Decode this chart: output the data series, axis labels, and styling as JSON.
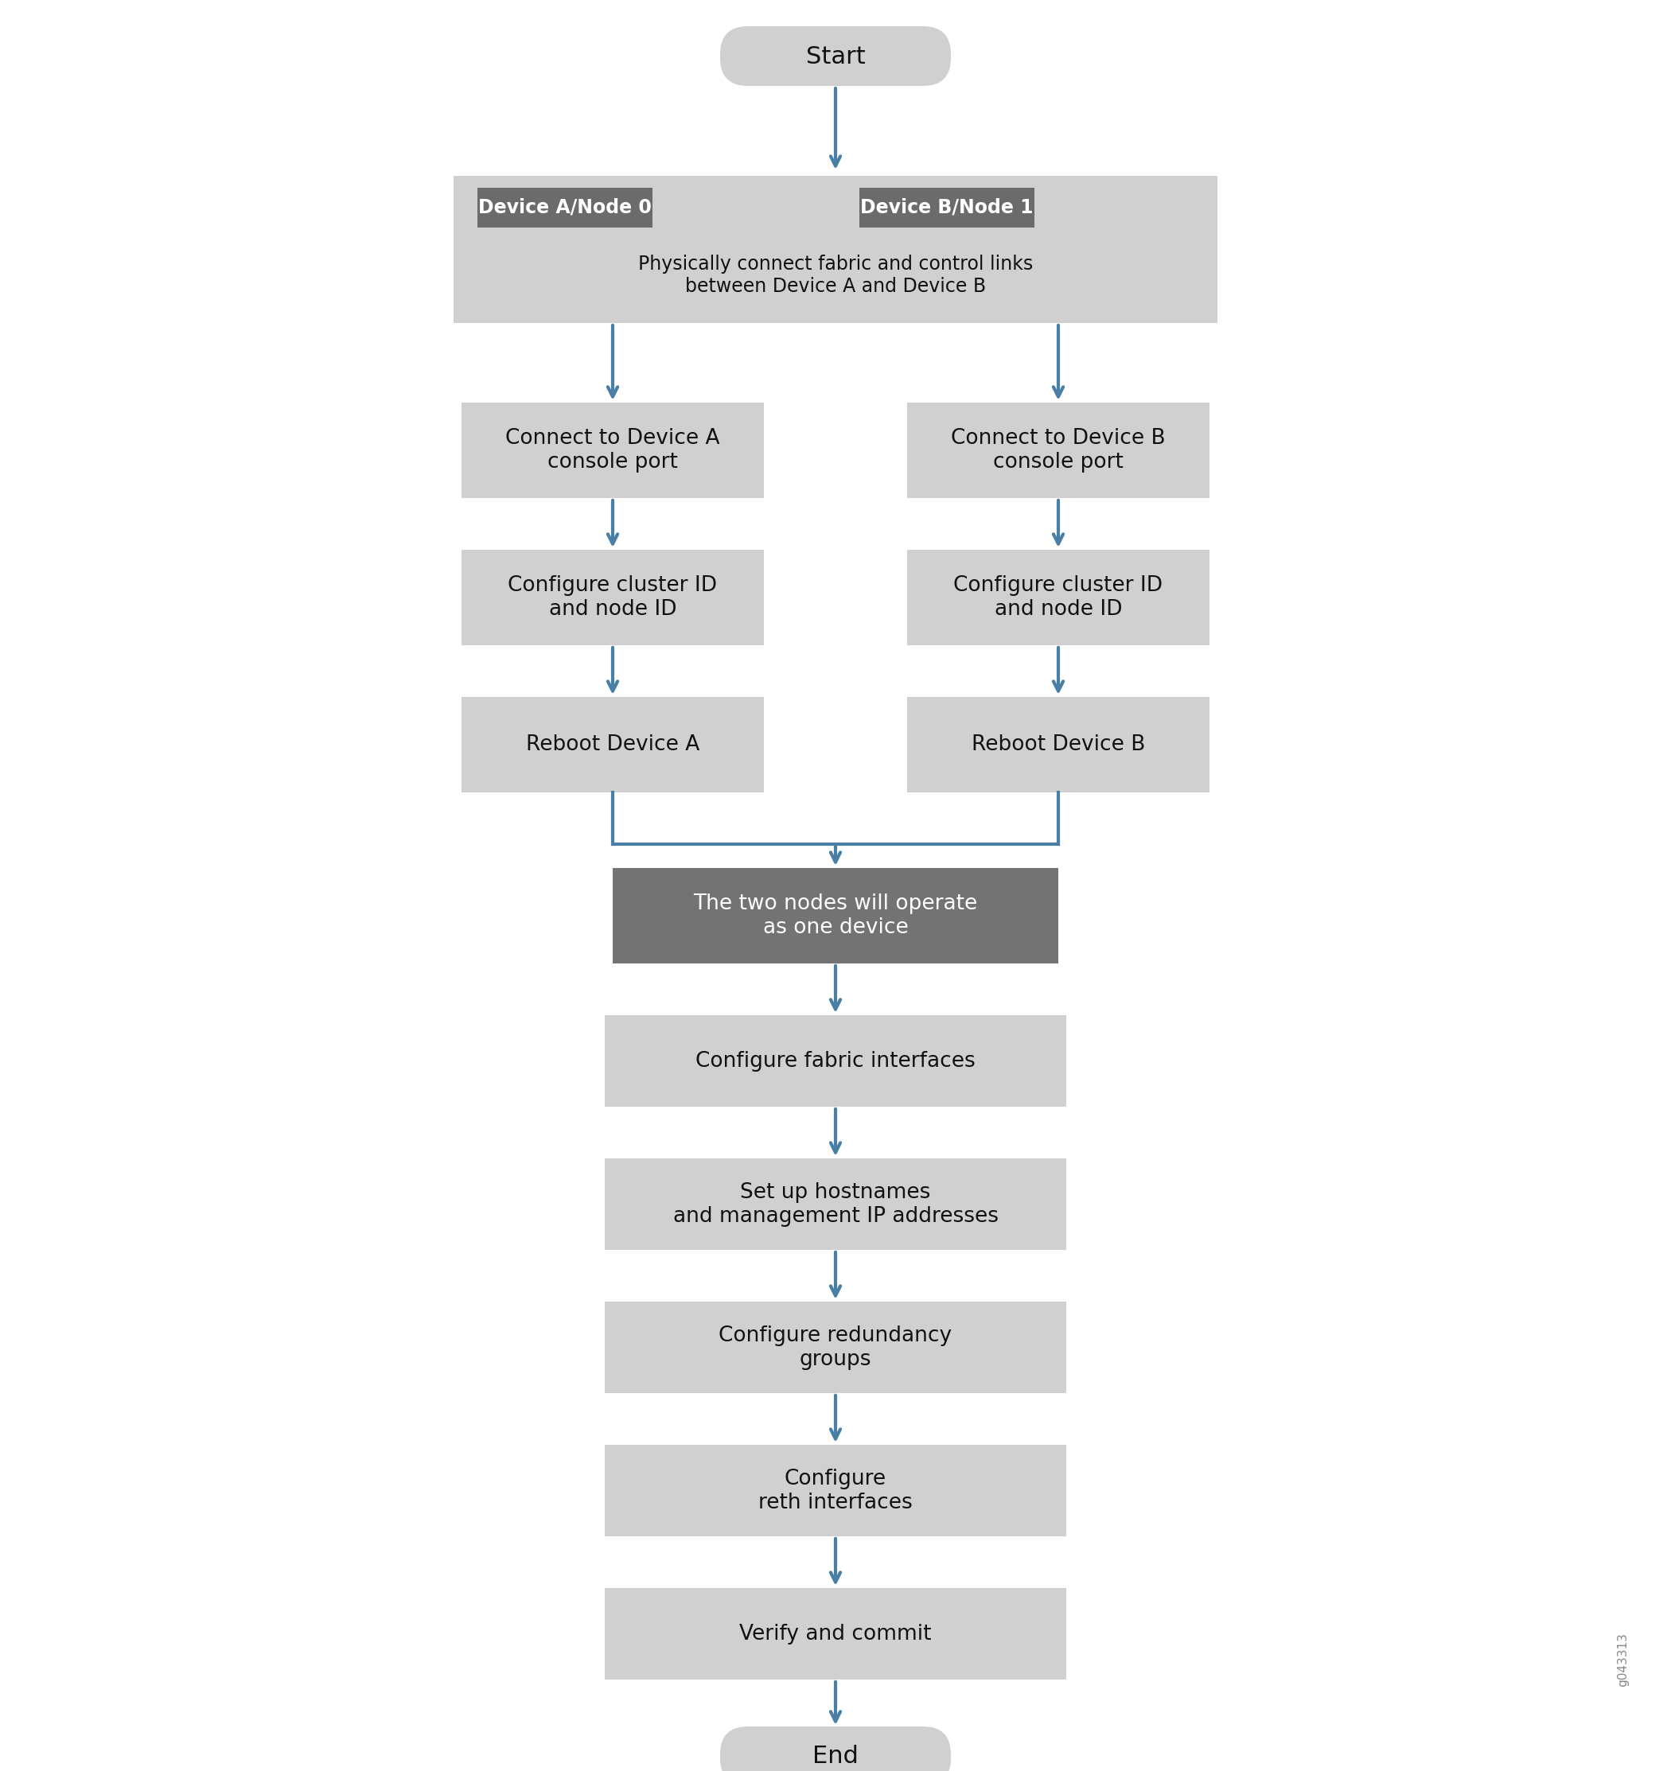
{
  "bg_color": "#ffffff",
  "arrow_color": "#4a7fa5",
  "start_end_color": "#d0d0d0",
  "box_light_color": "#d0d0d0",
  "box_dark_color": "#737373",
  "label_dark_bg": "#6b6b6b",
  "label_text_color": "#ffffff",
  "dark_box_text_color": "#ffffff",
  "light_box_text_color": "#111111",
  "font_size_large": 22,
  "font_size_medium": 19,
  "font_size_small": 17,
  "start_text": "Start",
  "end_text": "End",
  "node_labels": [
    "Device A/Node 0",
    "Device B/Node 1"
  ],
  "big_box_text": "Physically connect fabric and control links\nbetween Device A and Device B",
  "left_col_boxes": [
    "Connect to Device A\nconsole port",
    "Configure cluster ID\nand node ID",
    "Reboot Device A"
  ],
  "right_col_boxes": [
    "Connect to Device B\nconsole port",
    "Configure cluster ID\nand node ID",
    "Reboot Device B"
  ],
  "merge_box_text": "The two nodes will operate\nas one device",
  "lower_boxes": [
    "Configure fabric interfaces",
    "Set up hostnames\nand management IP addresses",
    "Configure redundancy\ngroups",
    "Configure\nreth interfaces",
    "Verify and commit"
  ],
  "watermark": "g043313"
}
